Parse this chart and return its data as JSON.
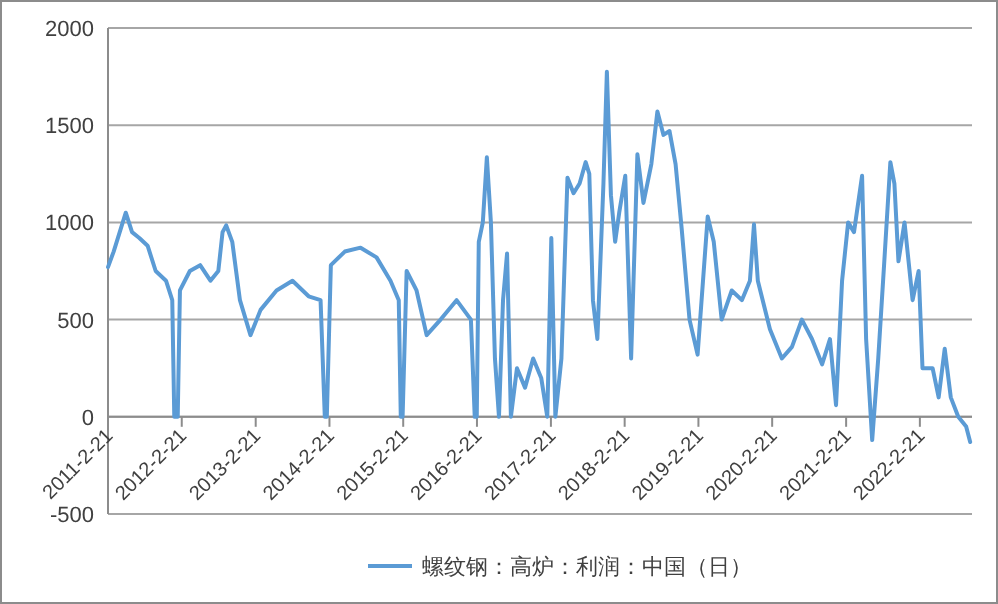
{
  "chart_data": {
    "type": "line",
    "x": [
      "2011-02-21",
      "2011-03-21",
      "2011-04-20",
      "2011-05-20",
      "2011-06-20",
      "2011-07-26",
      "2011-09-05",
      "2011-10-15",
      "2011-12-05",
      "2012-01-05",
      "2012-01-15",
      "2012-02-01",
      "2012-02-12",
      "2012-04-01",
      "2012-05-22",
      "2012-07-12",
      "2012-08-20",
      "2012-09-10",
      "2012-09-28",
      "2012-10-28",
      "2012-12-05",
      "2013-01-26",
      "2013-03-17",
      "2013-06-04",
      "2013-08-22",
      "2013-11-10",
      "2014-01-08",
      "2014-01-29",
      "2014-02-08",
      "2014-02-28",
      "2014-05-08",
      "2014-07-25",
      "2014-10-12",
      "2014-12-20",
      "2015-01-30",
      "2015-02-09",
      "2015-02-18",
      "2015-03-10",
      "2015-04-28",
      "2015-06-17",
      "2015-08-25",
      "2015-11-12",
      "2016-01-22",
      "2016-02-10",
      "2016-02-20",
      "2016-03-01",
      "2016-03-21",
      "2016-04-10",
      "2016-04-30",
      "2016-05-20",
      "2016-06-09",
      "2016-06-29",
      "2016-07-19",
      "2016-08-07",
      "2016-09-06",
      "2016-10-16",
      "2016-11-25",
      "2017-01-04",
      "2017-02-03",
      "2017-02-23",
      "2017-03-15",
      "2017-04-14",
      "2017-05-14",
      "2017-06-13",
      "2017-07-13",
      "2017-08-12",
      "2017-08-30",
      "2017-09-17",
      "2017-10-09",
      "2017-11-08",
      "2017-11-25",
      "2017-12-15",
      "2018-01-05",
      "2018-01-25",
      "2018-02-24",
      "2018-03-25",
      "2018-04-25",
      "2018-05-25",
      "2018-07-03",
      "2018-08-02",
      "2018-09-01",
      "2018-10-01",
      "2018-10-31",
      "2018-11-30",
      "2019-01-08",
      "2019-02-17",
      "2019-04-08",
      "2019-05-08",
      "2019-06-16",
      "2019-08-05",
      "2019-09-24",
      "2019-11-03",
      "2019-11-23",
      "2019-12-12",
      "2020-02-10",
      "2020-04-09",
      "2020-05-29",
      "2020-07-17",
      "2020-09-05",
      "2020-10-25",
      "2020-12-03",
      "2021-01-02",
      "2021-02-01",
      "2021-03-03",
      "2021-04-01",
      "2021-05-11",
      "2021-05-31",
      "2021-06-30",
      "2021-07-30",
      "2021-08-29",
      "2021-09-28",
      "2021-10-18",
      "2021-11-07",
      "2021-12-07",
      "2022-01-16",
      "2022-02-15",
      "2022-03-06",
      "2022-04-25",
      "2022-05-25",
      "2022-06-24",
      "2022-07-24",
      "2022-08-30",
      "2022-10-08",
      "2022-10-28"
    ],
    "series": [
      {
        "name": "螺纹钢：高炉：利润：中国（日）",
        "color": "#5b9bd5",
        "values": [
          770,
          850,
          950,
          1050,
          950,
          920,
          880,
          750,
          700,
          600,
          0,
          0,
          650,
          750,
          780,
          700,
          750,
          950,
          985,
          900,
          600,
          420,
          550,
          650,
          700,
          620,
          600,
          0,
          0,
          780,
          850,
          870,
          820,
          700,
          600,
          0,
          0,
          750,
          650,
          420,
          500,
          600,
          500,
          0,
          0,
          900,
          1000,
          1335,
          1000,
          300,
          0,
          600,
          840,
          0,
          250,
          150,
          300,
          200,
          0,
          920,
          0,
          300,
          1230,
          1150,
          1200,
          1310,
          1250,
          600,
          400,
          1200,
          1775,
          1140,
          900,
          1050,
          1240,
          300,
          1350,
          1100,
          1300,
          1570,
          1450,
          1470,
          1300,
          970,
          500,
          320,
          1030,
          900,
          500,
          650,
          600,
          700,
          990,
          700,
          450,
          300,
          360,
          500,
          400,
          270,
          400,
          60,
          700,
          1000,
          950,
          1240,
          400,
          -120,
          300,
          800,
          1310,
          1200,
          800,
          1000,
          600,
          750,
          250,
          250,
          100,
          350,
          100,
          0,
          -50,
          -130
        ]
      }
    ],
    "xlim": [
      "2011-02-21",
      "2022-11-06"
    ],
    "xticks": [
      {
        "value": "2011-02-21",
        "label": "2011-2-21"
      },
      {
        "value": "2012-02-21",
        "label": "2012-2-21"
      },
      {
        "value": "2013-02-21",
        "label": "2013-2-21"
      },
      {
        "value": "2014-02-21",
        "label": "2014-2-21"
      },
      {
        "value": "2015-02-21",
        "label": "2015-2-21"
      },
      {
        "value": "2016-02-21",
        "label": "2016-2-21"
      },
      {
        "value": "2017-02-21",
        "label": "2017-2-21"
      },
      {
        "value": "2018-02-21",
        "label": "2018-2-21"
      },
      {
        "value": "2019-02-21",
        "label": "2019-2-21"
      },
      {
        "value": "2020-02-21",
        "label": "2020-2-21"
      },
      {
        "value": "2021-02-21",
        "label": "2021-2-21"
      },
      {
        "value": "2022-02-21",
        "label": "2022-2-21"
      }
    ],
    "ylim": [
      -500,
      2000
    ],
    "yticks": [
      -500,
      0,
      500,
      1000,
      1500,
      2000
    ],
    "grid": "y",
    "legend": "bottom",
    "line_style": "solid"
  }
}
